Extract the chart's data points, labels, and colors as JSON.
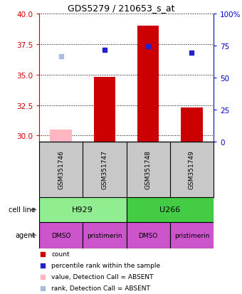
{
  "title": "GDS5279 / 210653_s_at",
  "samples": [
    "GSM351746",
    "GSM351747",
    "GSM351748",
    "GSM351749"
  ],
  "bar_values": [
    30.5,
    34.8,
    39.0,
    32.3
  ],
  "bar_colors": [
    "#FFB6C1",
    "#CC0000",
    "#CC0000",
    "#CC0000"
  ],
  "bar_absent": [
    true,
    false,
    false,
    false
  ],
  "rank_values": [
    36.5,
    37.0,
    37.3,
    36.8
  ],
  "rank_colors": [
    "#AABBDD",
    "#2222CC",
    "#2222CC",
    "#2222CC"
  ],
  "rank_absent": [
    true,
    false,
    false,
    false
  ],
  "cell_line_labels": [
    "H929",
    "U266"
  ],
  "cell_line_spans": [
    [
      0,
      1
    ],
    [
      2,
      3
    ]
  ],
  "cell_line_colors": [
    "#90EE90",
    "#44CC44"
  ],
  "agent_labels": [
    "DMSO",
    "pristimerin",
    "DMSO",
    "pristimerin"
  ],
  "agent_color": "#CC55CC",
  "ylim_left": [
    29.5,
    40.0
  ],
  "yticks_left": [
    30,
    32.5,
    35,
    37.5,
    40
  ],
  "ylim_right": [
    0,
    100
  ],
  "yticks_right": [
    0,
    25,
    50,
    75,
    100
  ],
  "yaxis_left_color": "#CC0000",
  "yaxis_right_color": "#0000CC",
  "grid_color": "#000000",
  "background_color": "#FFFFFF",
  "legend_colors": [
    "#CC0000",
    "#2222CC",
    "#FFB6C1",
    "#AABBDD"
  ],
  "legend_labels": [
    "count",
    "percentile rank within the sample",
    "value, Detection Call = ABSENT",
    "rank, Detection Call = ABSENT"
  ]
}
